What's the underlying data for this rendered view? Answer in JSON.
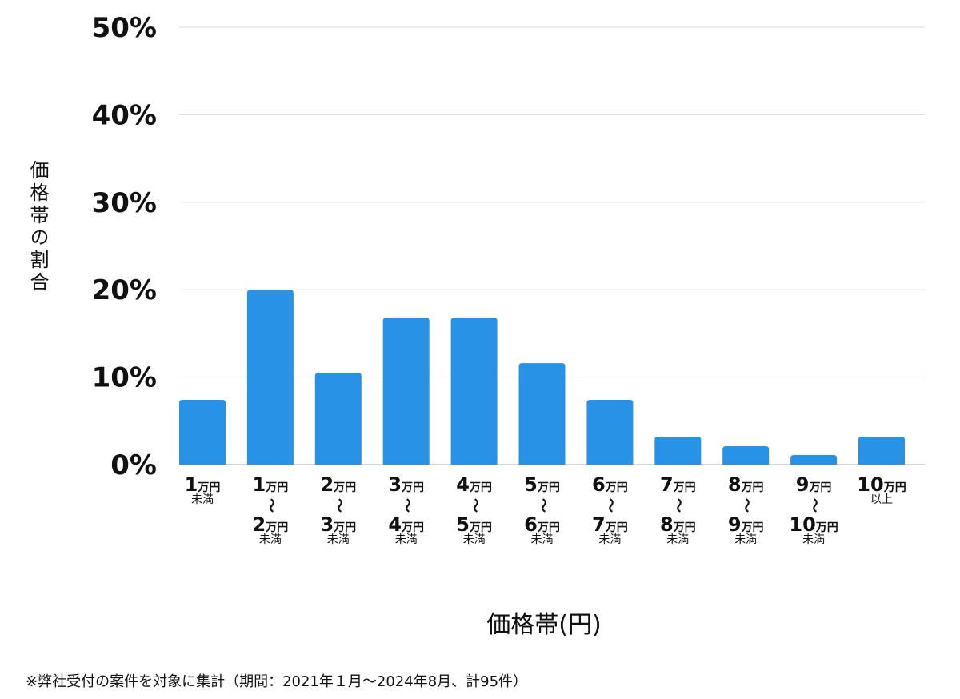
{
  "chart_data": {
    "type": "bar",
    "xlabel": "価格帯(円)",
    "ylabel": "価格帯の割合",
    "ylim": [
      0,
      50
    ],
    "yticks": [
      "0%",
      "10%",
      "20%",
      "30%",
      "40%",
      "50%"
    ],
    "grid": true,
    "color": "#2893e6",
    "categories": [
      {
        "from": "1",
        "from_unit": "万円",
        "to": "",
        "to_unit": "",
        "suffix": "未満"
      },
      {
        "from": "1",
        "from_unit": "万円",
        "to": "2",
        "to_unit": "万円",
        "suffix": "未満"
      },
      {
        "from": "2",
        "from_unit": "万円",
        "to": "3",
        "to_unit": "万円",
        "suffix": "未満"
      },
      {
        "from": "3",
        "from_unit": "万円",
        "to": "4",
        "to_unit": "万円",
        "suffix": "未満"
      },
      {
        "from": "4",
        "from_unit": "万円",
        "to": "5",
        "to_unit": "万円",
        "suffix": "未満"
      },
      {
        "from": "5",
        "from_unit": "万円",
        "to": "6",
        "to_unit": "万円",
        "suffix": "未満"
      },
      {
        "from": "6",
        "from_unit": "万円",
        "to": "7",
        "to_unit": "万円",
        "suffix": "未満"
      },
      {
        "from": "7",
        "from_unit": "万円",
        "to": "8",
        "to_unit": "万円",
        "suffix": "未満"
      },
      {
        "from": "8",
        "from_unit": "万円",
        "to": "9",
        "to_unit": "万円",
        "suffix": "未満"
      },
      {
        "from": "9",
        "from_unit": "万円",
        "to": "10",
        "to_unit": "万円",
        "suffix": "未満"
      },
      {
        "from": "10",
        "from_unit": "万円",
        "to": "",
        "to_unit": "",
        "suffix": "以上"
      }
    ],
    "range_mark": "〜",
    "values": [
      7.4,
      20.0,
      10.5,
      16.8,
      16.8,
      11.6,
      7.4,
      3.2,
      2.1,
      1.1,
      3.2
    ]
  },
  "note": "※弊社受付の案件を対象に集計（期間：2021年１月〜2024年8月、計95件）"
}
